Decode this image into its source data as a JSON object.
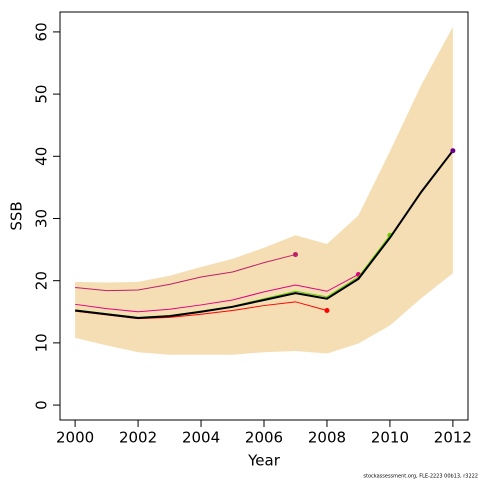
{
  "chart_data": {
    "type": "line",
    "x_label": "Year",
    "y_label": "SSB",
    "footer": "stockassessment.org, FLE-2223  00b13, r3222",
    "x": [
      2000,
      2001,
      2002,
      2003,
      2004,
      2005,
      2006,
      2007,
      2008,
      2009,
      2010,
      2011,
      2012
    ],
    "band": {
      "color": "#f5deb3",
      "upper": [
        19.8,
        19.7,
        19.8,
        20.8,
        22.2,
        23.5,
        25.3,
        27.3,
        25.9,
        30.5,
        40.8,
        51.5,
        60.8
      ],
      "lower": [
        10.8,
        9.6,
        8.5,
        8.1,
        8.1,
        8.1,
        8.5,
        8.7,
        8.3,
        9.9,
        12.8,
        17.2,
        21.2
      ]
    },
    "series": [
      {
        "color": "#c0206a",
        "values": [
          18.9,
          18.4,
          18.5,
          19.4,
          20.6,
          21.4,
          22.9,
          24.2,
          null,
          null,
          null,
          null,
          null
        ]
      },
      {
        "color": "#ff0000",
        "values": [
          15.1,
          14.5,
          13.9,
          14.1,
          14.6,
          15.2,
          16.0,
          16.6,
          15.2,
          null,
          null,
          null,
          null
        ]
      },
      {
        "color": "#e6007e",
        "values": [
          16.2,
          15.5,
          15.0,
          15.4,
          16.1,
          16.9,
          18.2,
          19.3,
          18.3,
          21.0,
          null,
          null,
          null
        ]
      },
      {
        "color": "#66cc00",
        "values": [
          15.3,
          14.7,
          14.1,
          14.4,
          15.1,
          15.9,
          17.1,
          18.3,
          17.4,
          20.6,
          27.3,
          null,
          null
        ]
      },
      {
        "color": "#000000",
        "point_color": "#6a008a",
        "values": [
          15.2,
          14.6,
          14.0,
          14.3,
          15.0,
          15.8,
          16.9,
          18.0,
          17.1,
          20.3,
          26.9,
          34.3,
          40.9
        ]
      }
    ],
    "xlim": [
      1999.52,
      2012.48
    ],
    "ylim": [
      -2.4,
      63.2
    ],
    "xticks": [
      2000,
      2002,
      2004,
      2006,
      2008,
      2010,
      2012
    ],
    "yticks": [
      0,
      10,
      20,
      30,
      40,
      50,
      60
    ]
  }
}
